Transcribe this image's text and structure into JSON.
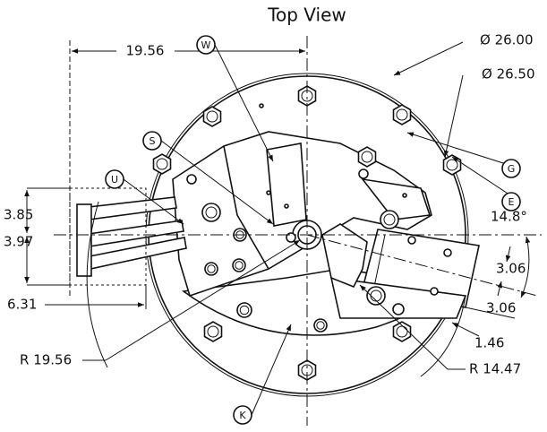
{
  "title": "Top View",
  "dimensions": [
    "19.56",
    "Ø 26.00",
    "Ø 26.50",
    "3.85",
    "3.97",
    "6.31",
    "14.8°",
    "3.06",
    "3.06",
    "1.46",
    "R 19.56",
    "R 14.47"
  ],
  "callouts": [
    "W",
    "S",
    "U",
    "G",
    "E",
    "K"
  ]
}
